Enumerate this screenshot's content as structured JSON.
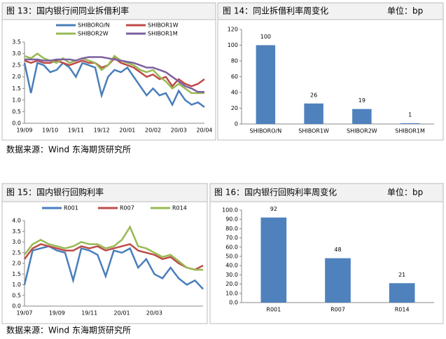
{
  "chart_data": [
    {
      "type": "line",
      "title": "图 13：国内银行间同业拆借利率",
      "categories": [
        "19/09",
        null,
        null,
        null,
        "19/10",
        null,
        null,
        null,
        "19/11",
        null,
        null,
        null,
        "19/12",
        null,
        null,
        null,
        "20/01",
        null,
        null,
        null,
        "20/02",
        null,
        null,
        null,
        "20/03",
        null,
        null,
        null,
        "20/04"
      ],
      "series": [
        {
          "name": "SHIBORO/N",
          "color": "#4a7ebb",
          "values": [
            2.6,
            1.3,
            2.6,
            2.5,
            2.2,
            2.3,
            2.6,
            2.4,
            2.0,
            2.6,
            2.5,
            2.4,
            1.2,
            2.0,
            2.3,
            2.2,
            2.4,
            2.0,
            1.6,
            1.2,
            1.5,
            1.2,
            1.3,
            0.8,
            1.4,
            1.0,
            0.8,
            0.9,
            0.7
          ]
        },
        {
          "name": "SHIBOR1W",
          "color": "#be4b48",
          "values": [
            2.7,
            2.6,
            2.7,
            2.6,
            2.6,
            2.7,
            2.6,
            2.5,
            2.6,
            2.7,
            2.6,
            2.6,
            2.4,
            2.5,
            2.8,
            2.6,
            2.5,
            2.4,
            2.2,
            2.0,
            2.1,
            1.9,
            2.0,
            1.6,
            1.9,
            1.7,
            1.6,
            1.7,
            1.9
          ]
        },
        {
          "name": "SHIBOR2W",
          "color": "#98b954",
          "values": [
            2.9,
            2.8,
            3.0,
            2.8,
            2.7,
            2.6,
            2.8,
            2.6,
            2.7,
            2.8,
            2.7,
            2.6,
            2.3,
            2.5,
            2.9,
            2.7,
            2.6,
            2.5,
            2.3,
            2.2,
            2.3,
            2.0,
            1.8,
            1.5,
            1.7,
            1.5,
            1.3,
            1.3,
            1.3
          ]
        },
        {
          "name": "SHIBOR1M",
          "color": "#7d60a0",
          "values": [
            2.75,
            2.75,
            2.75,
            2.7,
            2.7,
            2.75,
            2.75,
            2.75,
            2.7,
            2.8,
            2.85,
            2.85,
            2.85,
            2.8,
            2.75,
            2.7,
            2.65,
            2.6,
            2.5,
            2.4,
            2.4,
            2.3,
            2.2,
            2.0,
            1.8,
            1.6,
            1.5,
            1.35,
            1.35
          ]
        }
      ],
      "ylim": [
        0,
        3.5
      ],
      "yticks": [
        {
          "value": 0,
          "label": "0.0"
        },
        {
          "value": 0.5,
          "label": "0.5"
        },
        {
          "value": 1,
          "label": "1.0"
        },
        {
          "value": 1.5,
          "label": "1.5"
        },
        {
          "value": 2,
          "label": "2.0"
        },
        {
          "value": 2.5,
          "label": "2.5"
        },
        {
          "value": 3,
          "label": "3.0"
        },
        {
          "value": 3.5,
          "label": "3.5"
        }
      ]
    },
    {
      "type": "bar",
      "title": "图 14：同业拆借利率周变化",
      "unit": "单位：bp",
      "categories": [
        "SHIBORO/N",
        "SHIBOR1W",
        "SHIBOR2W",
        "SHIBOR1M"
      ],
      "values": [
        100,
        26,
        19,
        1
      ],
      "color": "#4f81bd",
      "ylim": [
        0,
        120
      ],
      "yticks": [
        0,
        20,
        40,
        60,
        80,
        100,
        120
      ]
    },
    {
      "type": "line",
      "title": "图 15：国内银行回购利率",
      "categories": [
        "19/07",
        null,
        null,
        null,
        "19/09",
        null,
        null,
        null,
        "19/11",
        null,
        null,
        null,
        "20/01",
        null,
        null,
        null,
        "20/03",
        null,
        null,
        null,
        null,
        null,
        null
      ],
      "series": [
        {
          "name": "R001",
          "color": "#4a7ebb",
          "values": [
            1.0,
            2.6,
            2.7,
            2.8,
            2.6,
            2.5,
            1.2,
            2.7,
            2.6,
            2.4,
            1.4,
            2.6,
            2.5,
            2.7,
            1.8,
            2.2,
            1.5,
            1.3,
            1.8,
            1.3,
            1.0,
            1.2,
            0.8
          ]
        },
        {
          "name": "R007",
          "color": "#be4b48",
          "values": [
            2.2,
            2.7,
            2.9,
            2.8,
            2.7,
            2.6,
            2.6,
            2.8,
            2.7,
            2.8,
            2.6,
            2.7,
            2.8,
            2.9,
            2.6,
            2.5,
            2.4,
            2.2,
            2.3,
            2.0,
            1.8,
            1.7,
            1.9
          ]
        },
        {
          "name": "R014",
          "color": "#98b954",
          "values": [
            2.4,
            2.9,
            3.1,
            2.9,
            2.8,
            2.7,
            2.8,
            3.0,
            2.9,
            2.9,
            2.7,
            2.8,
            3.1,
            3.7,
            2.8,
            2.7,
            2.5,
            2.3,
            2.4,
            2.1,
            1.8,
            1.7,
            1.7
          ]
        }
      ],
      "ylim": [
        0,
        4
      ],
      "yticks": [
        {
          "value": 0,
          "label": "0.0"
        },
        {
          "value": 0.5,
          "label": "0.5"
        },
        {
          "value": 1,
          "label": "1.0"
        },
        {
          "value": 1.5,
          "label": "1.5"
        },
        {
          "value": 2,
          "label": "2.0"
        },
        {
          "value": 2.5,
          "label": "2.5"
        },
        {
          "value": 3,
          "label": "3.0"
        },
        {
          "value": 3.5,
          "label": "3.5"
        },
        {
          "value": 4,
          "label": "4.0"
        }
      ]
    },
    {
      "type": "bar",
      "title": "图 16：国内银行回购利率周变化",
      "unit": "单位：bp",
      "categories": [
        "R001",
        "R007",
        "R014"
      ],
      "values": [
        92,
        48,
        21
      ],
      "color": "#4f81bd",
      "ylim": [
        0,
        100
      ],
      "yticks": [
        {
          "value": 0,
          "label": "0.0"
        },
        {
          "value": 10,
          "label": "10.0"
        },
        {
          "value": 20,
          "label": "20.0"
        },
        {
          "value": 30,
          "label": "30.0"
        },
        {
          "value": 40,
          "label": "40.0"
        },
        {
          "value": 50,
          "label": "50.0"
        },
        {
          "value": 60,
          "label": "60.0"
        },
        {
          "value": 70,
          "label": "70.0"
        },
        {
          "value": 80,
          "label": "80.0"
        },
        {
          "value": 90,
          "label": "90.0"
        },
        {
          "value": 100,
          "label": "100.0"
        }
      ]
    }
  ],
  "sources": [
    "数据来源：Wind 东海期货研究所",
    "数据来源：Wind 东海期货研究所"
  ]
}
